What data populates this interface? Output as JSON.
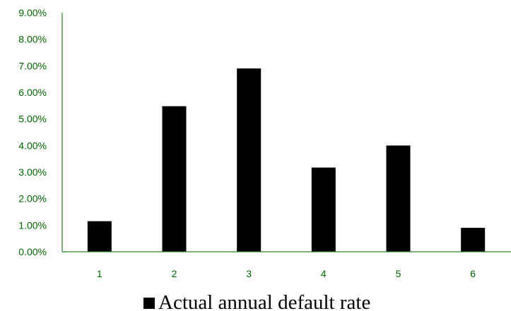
{
  "chart_data": {
    "type": "bar",
    "categories": [
      "1",
      "2",
      "3",
      "4",
      "5",
      "6"
    ],
    "series": [
      {
        "name": "Actual annual default rate",
        "values": [
          0.0115,
          0.0548,
          0.069,
          0.0317,
          0.04,
          0.009
        ],
        "color": "#000000"
      }
    ],
    "y_ticks": [
      "0.00%",
      "1.00%",
      "2.00%",
      "3.00%",
      "4.00%",
      "5.00%",
      "6.00%",
      "7.00%",
      "8.00%",
      "9.00%"
    ],
    "ylim": [
      0,
      0.09
    ],
    "grid": false,
    "legend_position": "bottom",
    "axis_color": "#2e7d32",
    "tick_label_color": "#006400"
  }
}
